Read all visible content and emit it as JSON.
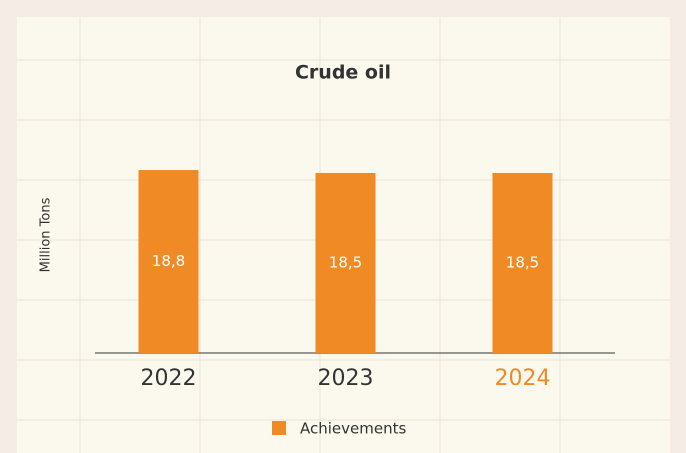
{
  "chart_data": {
    "type": "bar",
    "title": "Crude oil",
    "y_label": "Million Tons",
    "categories": [
      "2022",
      "2023",
      "2024"
    ],
    "category_label_colors": [
      "#333333",
      "#333333",
      "#f08a24"
    ],
    "series": [
      {
        "name": "Achievements",
        "color": "#f08a24",
        "values": [
          18.8,
          18.5,
          18.5
        ],
        "value_labels": [
          "18,8",
          "18,5",
          "18,5"
        ]
      }
    ],
    "ylim": [
      0,
      26
    ],
    "legend": "bottom"
  }
}
